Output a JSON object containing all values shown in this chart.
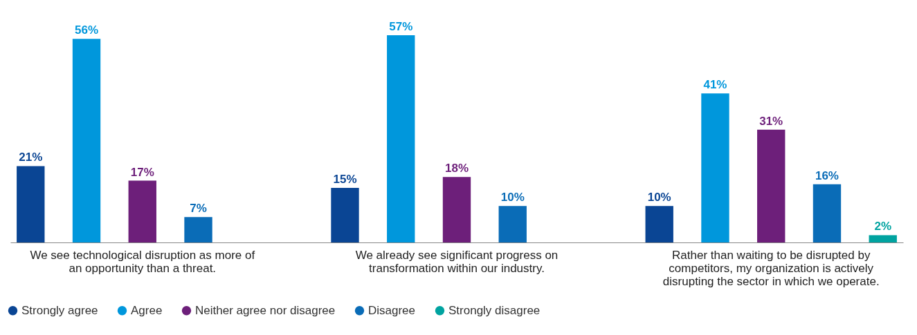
{
  "chart_data": {
    "type": "bar",
    "categories": [
      "We see technological disruption as more of an opportunity than a threat.",
      "We already see significant progress on transformation within our industry.",
      "Rather than waiting to be disrupted by competitors, my organization is actively disrupting the sector in which we operate."
    ],
    "series": [
      {
        "name": "Strongly agree",
        "color": "#0a4594",
        "values": [
          21,
          15,
          10
        ],
        "value_labels": [
          "21%",
          "15%",
          "10%"
        ]
      },
      {
        "name": "Agree",
        "color": "#0097dc",
        "values": [
          56,
          57,
          41
        ],
        "value_labels": [
          "56%",
          "57%",
          "41%"
        ]
      },
      {
        "name": "Neither agree nor disagree",
        "color": "#6d1f7a",
        "values": [
          17,
          18,
          31
        ],
        "value_labels": [
          "17%",
          "18%",
          "31%"
        ]
      },
      {
        "name": "Disagree",
        "color": "#0a6cb7",
        "values": [
          7,
          10,
          16
        ],
        "value_labels": [
          "7%",
          "10%",
          "16%"
        ]
      },
      {
        "name": "Strongly disagree",
        "color": "#00a3a0",
        "values": [
          null,
          null,
          2
        ],
        "value_labels": [
          null,
          null,
          "2%"
        ]
      }
    ],
    "legend": "bottom left",
    "grid": false
  }
}
